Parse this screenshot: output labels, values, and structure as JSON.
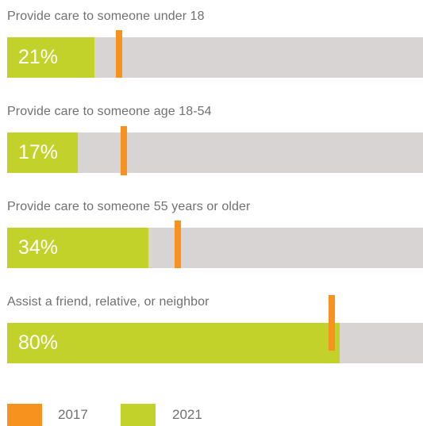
{
  "chart_data": {
    "type": "bar",
    "orientation": "horizontal",
    "xlim": [
      0,
      100
    ],
    "value_suffix": "%",
    "categories": [
      "Provide care to someone under 18",
      "Provide care to someone age 18-54",
      "Provide care to someone 55 years or older",
      "Assist a friend, relative, or neighbor"
    ],
    "series": [
      {
        "name": "2021",
        "color": "#c3d22b",
        "render": "bar",
        "values": [
          21,
          17,
          34,
          80
        ],
        "value_labels": [
          "21%",
          "17%",
          "34%",
          "80%"
        ]
      },
      {
        "name": "2017",
        "color": "#f7921e",
        "render": "marker",
        "values": [
          27,
          28,
          41,
          78
        ]
      }
    ],
    "legend": {
      "placement": "bottom-left",
      "entries": [
        {
          "label": "2017",
          "color": "#f7921e"
        },
        {
          "label": "2021",
          "color": "#c3d22b"
        }
      ]
    },
    "background_color": "#d9d4d4",
    "grid": false
  }
}
